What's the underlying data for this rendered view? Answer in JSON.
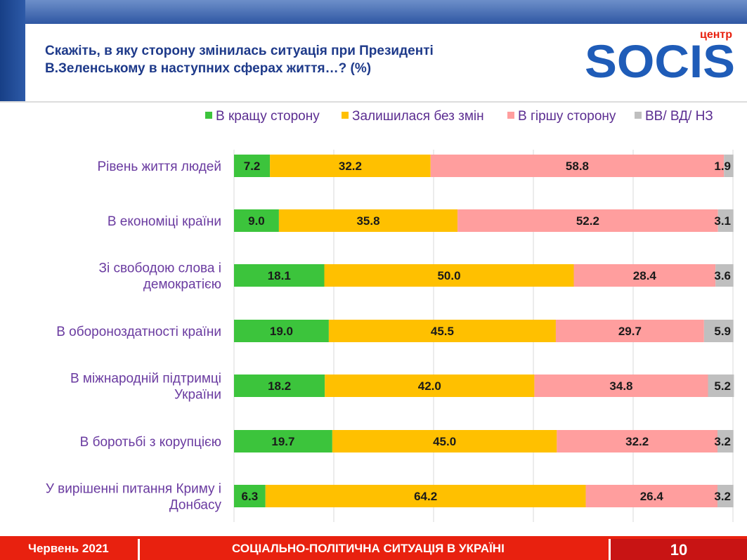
{
  "header": {
    "title": "Скажіть, в яку сторону змінилась ситуація при Президенті\nВ.Зеленському в наступних сферах життя…? (%)",
    "logo_small": "центр",
    "logo_main": "SOCIS"
  },
  "colors": {
    "better": "#3cc43c",
    "same": "#ffc000",
    "worse": "#ff9e9e",
    "dk": "#bfbfbf",
    "label": "#6a3ba0",
    "title": "#1e3a8a",
    "footer": "#e8210f"
  },
  "chart_data": {
    "type": "bar",
    "orientation": "horizontal",
    "stacked": true,
    "title": "Скажіть, в яку сторону змінилась ситуація при Президенті В.Зеленському в наступних сферах життя…? (%)",
    "categories": [
      "Рівень життя людей",
      "В економіці країни",
      "Зі свободою слова і демократією",
      "В обороноздатності країни",
      "В міжнародній підтримці України",
      "В боротьбі з корупцією",
      "У вирішенні питання Криму і Донбасу"
    ],
    "category_lines": [
      [
        "Рівень життя людей"
      ],
      [
        "В економіці країни"
      ],
      [
        "Зі свободою слова і",
        "демократією"
      ],
      [
        "В обороноздатності країни"
      ],
      [
        "В міжнародній підтримці",
        "України"
      ],
      [
        "В боротьбі з корупцією"
      ],
      [
        "У вирішенні питання Криму і",
        "Донбасу"
      ]
    ],
    "series": [
      {
        "name": "В кращу сторону",
        "color": "#3cc43c",
        "values": [
          7.2,
          9.0,
          18.1,
          19.0,
          18.2,
          19.7,
          6.3
        ]
      },
      {
        "name": "Залишилася без змін",
        "color": "#ffc000",
        "values": [
          32.2,
          35.8,
          50.0,
          45.5,
          42.0,
          45.0,
          64.2
        ]
      },
      {
        "name": "В гіршу сторону",
        "color": "#ff9e9e",
        "values": [
          58.8,
          52.2,
          28.4,
          29.7,
          34.8,
          32.2,
          26.4
        ]
      },
      {
        "name": "ВВ/ ВД/ НЗ",
        "color": "#bfbfbf",
        "values": [
          1.9,
          3.1,
          3.6,
          5.9,
          5.2,
          3.2,
          3.2
        ]
      }
    ],
    "xlim": [
      0,
      100
    ],
    "grid": true,
    "legend_position": "top"
  },
  "footer": {
    "date": "Червень 2021",
    "topic": "СОЦІАЛЬНО-ПОЛІТИЧНА СИТУАЦІЯ В УКРАЇНІ",
    "page": "10"
  }
}
